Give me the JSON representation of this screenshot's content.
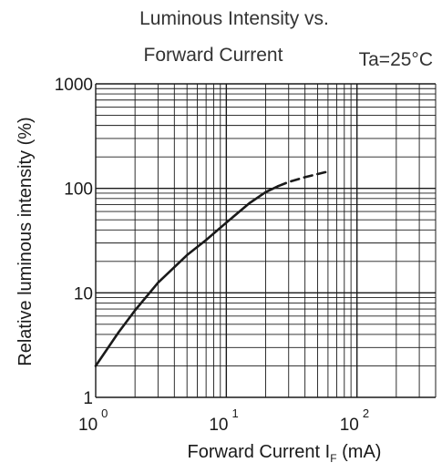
{
  "chart_data": {
    "type": "line",
    "title_line1": "Luminous Intensity vs.",
    "title_line2": "Forward Current",
    "condition": "Ta=25°C",
    "xlabel": {
      "main": "Forward Current  I",
      "sub": "F",
      "unit": " (mA)"
    },
    "ylabel": "Relative luminous intensity (%)",
    "x_scale": "log",
    "y_scale": "log",
    "xlim": [
      1,
      400
    ],
    "ylim": [
      1,
      1000
    ],
    "grid": true,
    "x_ticks": [
      {
        "base": "10",
        "exp": "0",
        "value": 1
      },
      {
        "base": "10",
        "exp": "1",
        "value": 10
      },
      {
        "base": "10",
        "exp": "2",
        "value": 100
      }
    ],
    "y_ticks": [
      {
        "label": "1",
        "value": 1
      },
      {
        "label": "10",
        "value": 10
      },
      {
        "label": "100",
        "value": 100
      },
      {
        "label": "1000",
        "value": 1000
      }
    ],
    "series": [
      {
        "style": "solid",
        "x": [
          1,
          1.5,
          2,
          3,
          5,
          7,
          10,
          15,
          20,
          25
        ],
        "y": [
          2,
          4.2,
          6.8,
          12.5,
          23,
          32,
          47,
          72,
          92,
          105
        ]
      },
      {
        "style": "dashed",
        "x": [
          25,
          30,
          40,
          50,
          60
        ],
        "y": [
          105,
          115,
          128,
          137,
          145
        ]
      }
    ],
    "colors": {
      "line": "#1a1a1a",
      "grid": "#1a1a1a",
      "title": "#333333"
    }
  }
}
